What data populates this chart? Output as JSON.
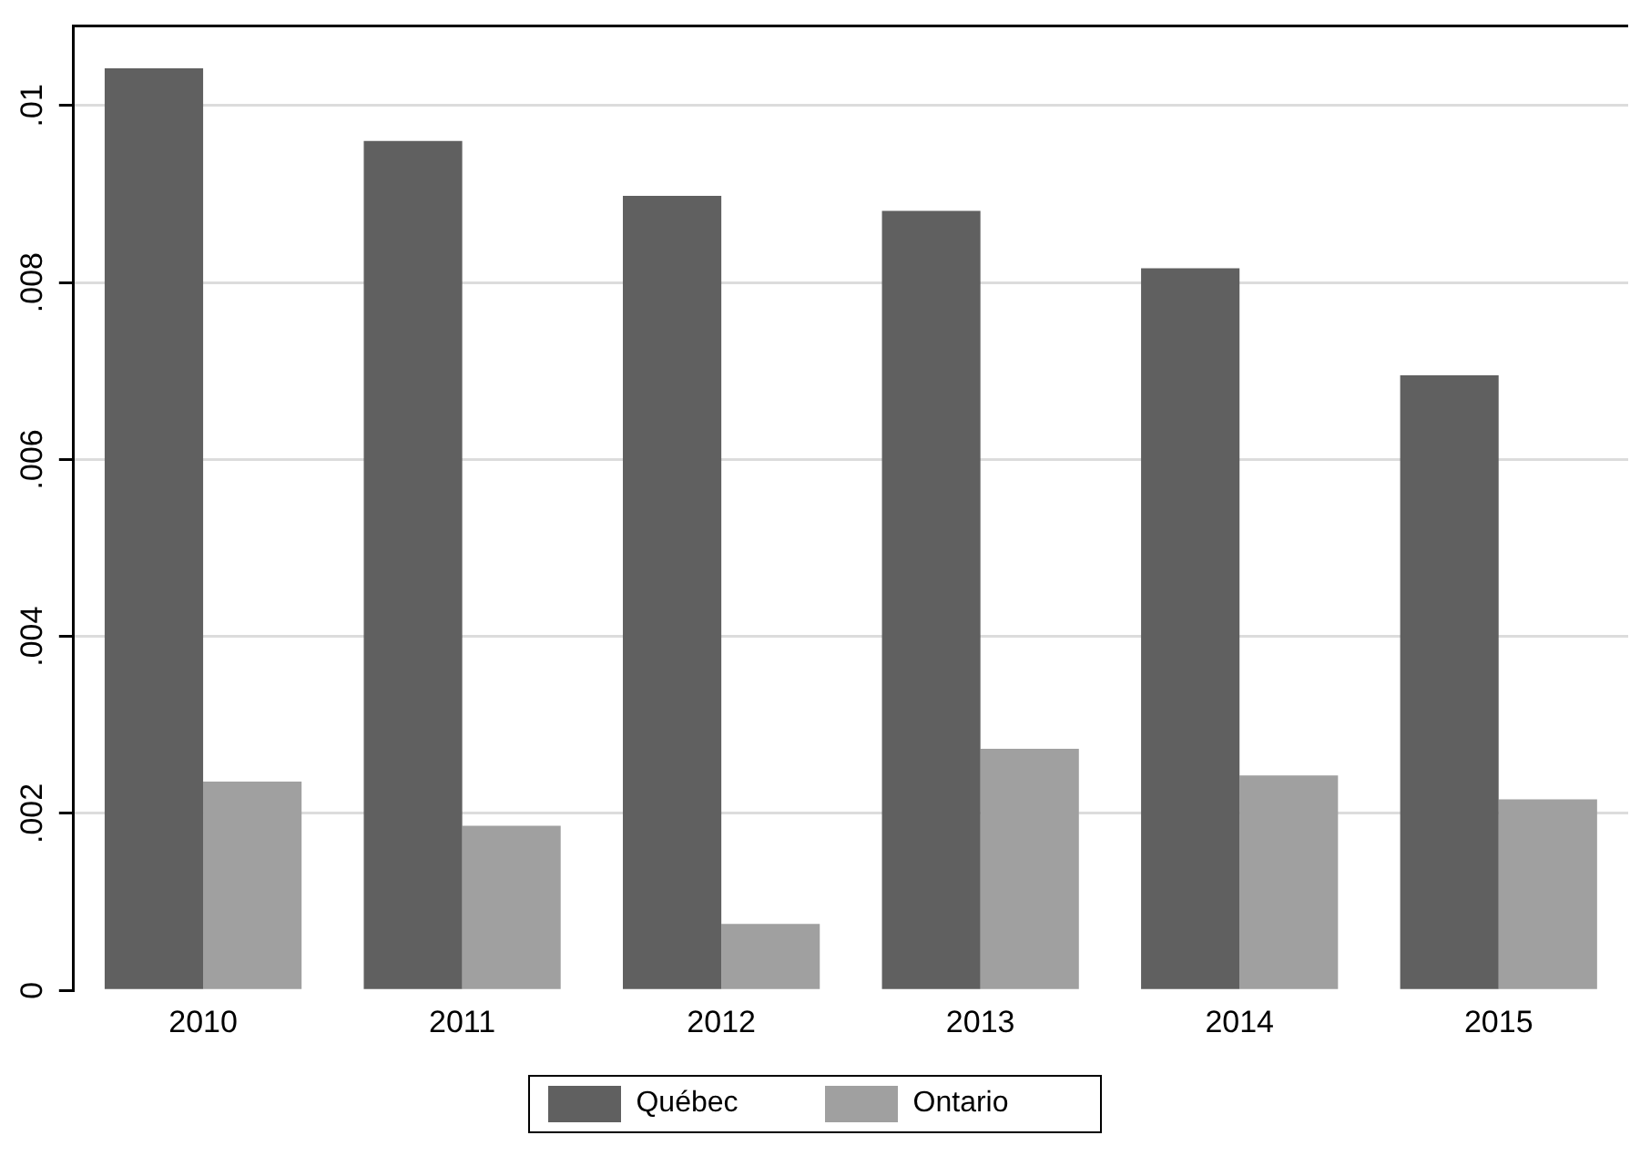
{
  "chart_data": {
    "type": "bar",
    "categories": [
      "2010",
      "2011",
      "2012",
      "2013",
      "2014",
      "2015"
    ],
    "series": [
      {
        "name": "Québec",
        "color": "#606060",
        "values": [
          0.01042,
          0.0096,
          0.00898,
          0.00881,
          0.00816,
          0.00695
        ]
      },
      {
        "name": "Ontario",
        "color": "#a0a0a0",
        "values": [
          0.00236,
          0.00186,
          0.00075,
          0.00273,
          0.00243,
          0.00216
        ]
      }
    ],
    "ylim": [
      0,
      0.0109
    ],
    "yticks": [
      {
        "value": 0,
        "label": "0"
      },
      {
        "value": 0.002,
        "label": ".002"
      },
      {
        "value": 0.004,
        "label": ".004"
      },
      {
        "value": 0.006,
        "label": ".006"
      },
      {
        "value": 0.008,
        "label": ".008"
      },
      {
        "value": 0.01,
        "label": ".01"
      }
    ],
    "grid": "y",
    "legend": "bottom"
  }
}
